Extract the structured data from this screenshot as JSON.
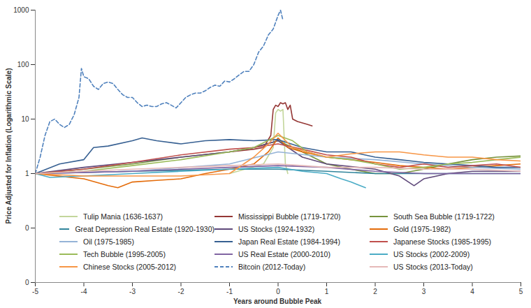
{
  "chart_data": {
    "type": "line",
    "x_label": "Years around Bubble Peak",
    "y_label": "Price Adjusted for Inflation (Logarithmic Scale)",
    "log": "y",
    "grid": false,
    "legend": "lower left",
    "xlim": [
      -5,
      5
    ],
    "xticks": [
      -5,
      -4,
      -3,
      -2,
      -1,
      0,
      1,
      2,
      3,
      4,
      5
    ],
    "ylim": [
      0.01,
      1000
    ],
    "yticks": [
      1000,
      100,
      10,
      1,
      {
        "value": 0.1,
        "label": "0"
      },
      {
        "value": 0.01,
        "label": "0"
      }
    ],
    "series": [
      {
        "name": "Tulip Mania (1636-1637)",
        "color": "#c3d69b",
        "line_style": "solid",
        "x": [
          -1,
          -0.3,
          -0.1,
          -0.05,
          0,
          0.05,
          0.1,
          0.15,
          0.2
        ],
        "values": [
          1,
          1.5,
          3,
          13,
          15,
          14,
          15,
          1.5,
          1
        ]
      },
      {
        "name": "Mississippi Bubble (1719-1720)",
        "color": "#953735",
        "line_style": "solid",
        "x": [
          -1,
          -0.5,
          -0.3,
          -0.15,
          -0.1,
          -0.05,
          0,
          0.05,
          0.1,
          0.15,
          0.2,
          0.25,
          0.3,
          0.4,
          0.5,
          0.6,
          0.7
        ],
        "values": [
          2.5,
          2.8,
          3,
          5,
          15,
          18,
          17,
          20,
          19,
          20,
          15,
          18,
          10,
          9,
          8.5,
          8,
          7.5
        ]
      },
      {
        "name": "South Sea Bubble (1719-1722)",
        "color": "#77933c",
        "line_style": "solid",
        "x": [
          -5,
          -4,
          -3,
          -2,
          -1,
          -0.5,
          0,
          0.3,
          0.5,
          1,
          1.5,
          2,
          2.5,
          3,
          3.5,
          4,
          4.5,
          5
        ],
        "values": [
          1,
          1.2,
          1.5,
          2,
          2.5,
          3,
          4,
          3,
          2.5,
          1.5,
          1.2,
          1,
          1,
          1.2,
          1.5,
          1.8,
          2,
          2.1
        ]
      },
      {
        "name": "Great Depression Real Estate (1920-1930)",
        "color": "#31859c",
        "line_style": "solid",
        "x": [
          -5,
          -4,
          -3,
          -2,
          -1,
          0,
          1,
          2,
          3,
          4,
          5
        ],
        "values": [
          1,
          1.05,
          1.1,
          1.15,
          1.2,
          1.2,
          1.1,
          1,
          1,
          1,
          1
        ]
      },
      {
        "name": "US Stocks (1924-1932)",
        "color": "#5f497a",
        "line_style": "solid",
        "x": [
          -5,
          -4,
          -3,
          -2,
          -1,
          -0.5,
          0,
          0.5,
          1,
          2,
          2.5,
          2.8,
          3,
          3.5,
          4,
          5
        ],
        "values": [
          1,
          1.3,
          1.6,
          2,
          2.5,
          3,
          4,
          2,
          1.5,
          1.2,
          0.9,
          0.6,
          0.8,
          1,
          1.1,
          1.1
        ]
      },
      {
        "name": "Gold (1975-1982)",
        "color": "#e46c0a",
        "line_style": "solid",
        "x": [
          -5,
          -4,
          -3.5,
          -3.3,
          -3,
          -2.5,
          -2,
          -1.5,
          -1,
          -0.5,
          -0.2,
          0,
          0.2,
          0.5,
          1,
          1.5,
          2,
          2.5,
          3,
          3.5,
          4,
          4.5,
          5
        ],
        "values": [
          1,
          0.8,
          0.6,
          0.55,
          0.7,
          0.75,
          0.8,
          1,
          1.2,
          1.5,
          2.5,
          4.5,
          3,
          2.5,
          2,
          1.8,
          1.6,
          1.4,
          1.3,
          1.2,
          1.3,
          1.4,
          1.5
        ]
      },
      {
        "name": "Oil (1975-1985)",
        "color": "#95b3d7",
        "line_style": "solid",
        "x": [
          -5,
          -3,
          -1,
          0,
          1,
          2,
          3,
          4,
          5
        ],
        "values": [
          1,
          1.1,
          1.5,
          2.5,
          2,
          1.8,
          1.5,
          1.3,
          1.2
        ]
      },
      {
        "name": "Japan Real Estate (1984-1994)",
        "color": "#376092",
        "line_style": "solid",
        "x": [
          -5,
          -4.5,
          -4,
          -3.8,
          -3.5,
          -3,
          -2.8,
          -2.5,
          -2,
          -1.5,
          -1,
          -0.5,
          0,
          0.5,
          1,
          1.5,
          2,
          2.5,
          3,
          3.5,
          4,
          4.5,
          5
        ],
        "values": [
          1,
          1.5,
          1.8,
          3,
          3.2,
          4,
          4.5,
          4,
          3.5,
          4,
          4.2,
          4,
          4.2,
          3,
          2.5,
          2.5,
          2,
          1.8,
          1.6,
          1.5,
          1.4,
          1.3,
          1.3
        ]
      },
      {
        "name": "Japanese Stocks (1985-1995)",
        "color": "#c0504d",
        "line_style": "solid",
        "x": [
          -5,
          -4,
          -3,
          -2,
          -1,
          -0.5,
          0,
          0.5,
          1,
          1.5,
          2,
          2.5,
          3,
          3.5,
          4,
          4.5,
          5
        ],
        "values": [
          1,
          1.2,
          1.6,
          2.2,
          2.8,
          3,
          3.5,
          2.8,
          2.2,
          2,
          1.5,
          1.3,
          1.5,
          1.3,
          1.4,
          1.5,
          1.3
        ]
      },
      {
        "name": "Tech Bubble (1995-2005)",
        "color": "#9bbb59",
        "line_style": "solid",
        "x": [
          -5,
          -4,
          -3,
          -2,
          -1,
          -0.5,
          0,
          0.3,
          0.6,
          1,
          1.5,
          2,
          2.5,
          3,
          3.5,
          4,
          4.5,
          5
        ],
        "values": [
          1,
          1.1,
          1.4,
          1.8,
          2.5,
          3,
          5,
          4,
          2.5,
          2,
          1.8,
          1.5,
          1.2,
          1.3,
          1.5,
          1.6,
          1.8,
          2
        ]
      },
      {
        "name": "US Real Estate (2000-2010)",
        "color": "#8064a2",
        "line_style": "solid",
        "x": [
          -5,
          -4,
          -3,
          -2,
          -1,
          0,
          1,
          2,
          3,
          4,
          5
        ],
        "values": [
          1,
          1.05,
          1.1,
          1.2,
          1.3,
          1.4,
          1.3,
          1.1,
          1,
          1,
          1
        ]
      },
      {
        "name": "US Stocks (2002-2009)",
        "color": "#4bacc6",
        "line_style": "solid",
        "x": [
          -5,
          -4.7,
          -4,
          -3,
          -2,
          -1,
          0,
          0.5,
          1,
          1.3,
          1.5,
          1.8
        ],
        "values": [
          1,
          0.85,
          0.9,
          1,
          1.1,
          1.2,
          1.3,
          1.1,
          1,
          0.8,
          0.7,
          0.55
        ]
      },
      {
        "name": "Chinese Stocks (2005-2012)",
        "color": "#f79646",
        "line_style": "solid",
        "x": [
          -5,
          -4,
          -3,
          -2,
          -1,
          -0.5,
          -0.2,
          0,
          0.3,
          0.6,
          1,
          1.5,
          2,
          2.5,
          3,
          3.5,
          4,
          4.5,
          5
        ],
        "values": [
          1,
          0.9,
          0.9,
          0.9,
          1,
          2,
          3.5,
          5.5,
          3,
          2.5,
          2,
          2.3,
          2.5,
          2.5,
          2.2,
          2,
          2,
          1.8,
          1.7
        ]
      },
      {
        "name": "Bitcoin (2012-Today)",
        "color": "#4f81bd",
        "line_style": "dashed",
        "x": [
          -5,
          -4.9,
          -4.8,
          -4.7,
          -4.6,
          -4.5,
          -4.4,
          -4.3,
          -4.2,
          -4.1,
          -4.05,
          -4,
          -3.9,
          -3.8,
          -3.7,
          -3.6,
          -3.5,
          -3.4,
          -3.3,
          -3.2,
          -3.1,
          -3,
          -2.9,
          -2.8,
          -2.7,
          -2.6,
          -2.5,
          -2.4,
          -2.3,
          -2.2,
          -2.1,
          -2,
          -1.9,
          -1.8,
          -1.7,
          -1.6,
          -1.5,
          -1.4,
          -1.3,
          -1.2,
          -1.1,
          -1,
          -0.9,
          -0.8,
          -0.7,
          -0.6,
          -0.5,
          -0.4,
          -0.3,
          -0.2,
          -0.1,
          0,
          0.05,
          0.1
        ],
        "values": [
          1,
          2,
          5,
          9,
          10,
          8,
          7,
          8,
          12,
          25,
          85,
          60,
          55,
          40,
          35,
          45,
          48,
          45,
          35,
          28,
          25,
          25,
          20,
          17,
          18,
          17,
          17,
          19,
          20,
          18,
          16,
          20,
          25,
          28,
          30,
          30,
          33,
          38,
          42,
          40,
          50,
          48,
          55,
          65,
          75,
          75,
          100,
          170,
          220,
          350,
          450,
          800,
          1000,
          650
        ]
      },
      {
        "name": "US Stocks (2013-Today)",
        "color": "#e6b9b8",
        "line_style": "solid",
        "x": [
          -5,
          -4,
          -3,
          -2,
          -1,
          0,
          0.5,
          1,
          2,
          3,
          4,
          5
        ],
        "values": [
          1,
          1.1,
          1.2,
          1.3,
          1.4,
          1.5,
          1.4,
          1.3,
          1.3,
          1.2,
          1.2,
          1.1
        ]
      }
    ]
  }
}
